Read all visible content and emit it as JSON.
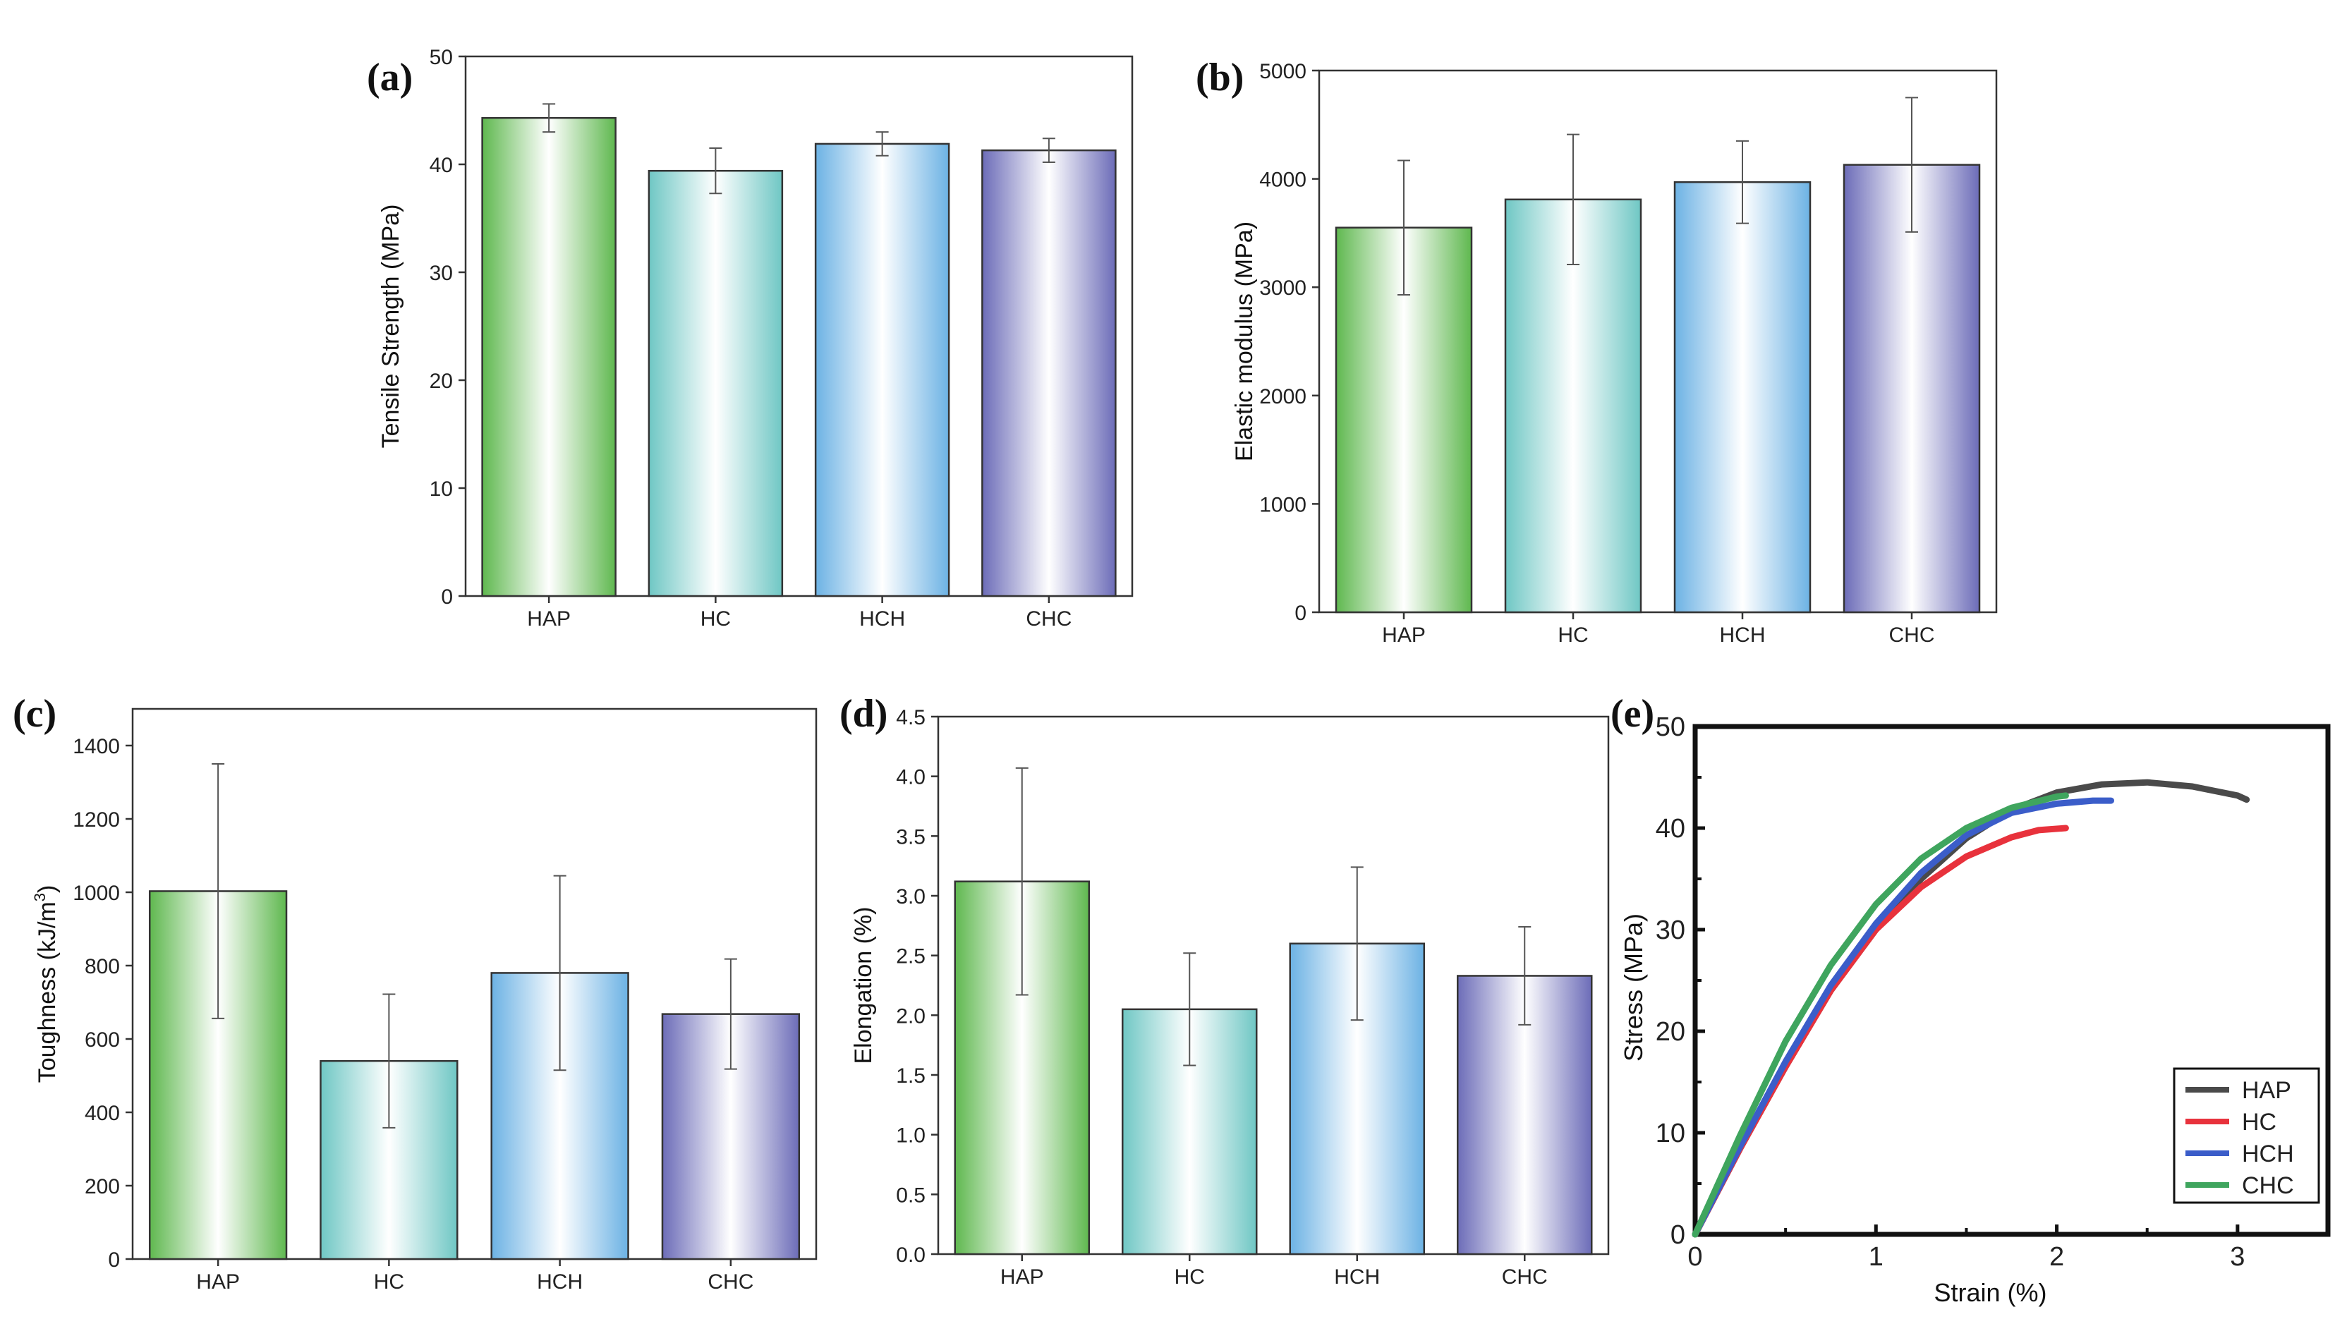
{
  "chart_data": [
    {
      "id": "a",
      "panel_label": "(a)",
      "type": "bar",
      "categories": [
        "HAP",
        "HC",
        "HCH",
        "CHC"
      ],
      "values": [
        44.3,
        39.4,
        41.9,
        41.3
      ],
      "errors": [
        1.3,
        2.1,
        1.1,
        1.1
      ],
      "ylabel": "Tensile Strength (MPa)",
      "xlabel": "",
      "ylim": [
        0,
        50
      ],
      "yticks": [
        0,
        10,
        20,
        30,
        40,
        50
      ],
      "ytick_labels": [
        "0",
        "10",
        "20",
        "30",
        "40",
        "50"
      ],
      "bar_colors": [
        "#5fb84f",
        "#6fc7c4",
        "#6cb2e4",
        "#6c6cb8"
      ]
    },
    {
      "id": "b",
      "panel_label": "(b)",
      "type": "bar",
      "categories": [
        "HAP",
        "HC",
        "HCH",
        "CHC"
      ],
      "values": [
        3550,
        3810,
        3970,
        4130
      ],
      "errors": [
        620,
        600,
        380,
        620
      ],
      "ylabel": "Elastic modulus (MPa)",
      "xlabel": "",
      "ylim": [
        0,
        5000
      ],
      "yticks": [
        0,
        1000,
        2000,
        3000,
        4000,
        5000
      ],
      "ytick_labels": [
        "0",
        "1000",
        "2000",
        "3000",
        "4000",
        "5000"
      ],
      "bar_colors": [
        "#5fb84f",
        "#6fc7c4",
        "#6cb2e4",
        "#6c6cb8"
      ]
    },
    {
      "id": "c",
      "panel_label": "(c)",
      "type": "bar",
      "categories": [
        "HAP",
        "HC",
        "HCH",
        "CHC"
      ],
      "values": [
        1003,
        540,
        780,
        668
      ],
      "errors": [
        347,
        182,
        265,
        150
      ],
      "ylabel": "Toughness (kJ/m",
      "ylabel_sup": "3",
      "ylabel_end": ")",
      "xlabel": "",
      "ylim": [
        0,
        1500
      ],
      "yticks": [
        0,
        200,
        400,
        600,
        800,
        1000,
        1200,
        1400
      ],
      "ytick_labels": [
        "0",
        "200",
        "400",
        "600",
        "800",
        "1000",
        "1200",
        "1400"
      ],
      "bar_colors": [
        "#5fb84f",
        "#6fc7c4",
        "#6cb2e4",
        "#6c6cb8"
      ]
    },
    {
      "id": "d",
      "panel_label": "(d)",
      "type": "bar",
      "categories": [
        "HAP",
        "HC",
        "HCH",
        "CHC"
      ],
      "values": [
        3.12,
        2.05,
        2.6,
        2.33
      ],
      "errors": [
        0.95,
        0.47,
        0.64,
        0.41
      ],
      "ylabel": "Elongation (%)",
      "xlabel": "",
      "ylim": [
        0,
        4.5
      ],
      "yticks": [
        0,
        0.5,
        1,
        1.5,
        2,
        2.5,
        3,
        3.5,
        4,
        4.5
      ],
      "ytick_labels": [
        "0.0",
        "0.5",
        "1.0",
        "1.5",
        "2.0",
        "2.5",
        "3.0",
        "3.5",
        "4.0",
        "4.5"
      ],
      "bar_colors": [
        "#5fb84f",
        "#6fc7c4",
        "#6cb2e4",
        "#6c6cb8"
      ]
    },
    {
      "id": "e",
      "panel_label": "(e)",
      "type": "line",
      "xlabel": "Strain (%)",
      "ylabel": "Stress (MPa)",
      "xlim": [
        0,
        3.5
      ],
      "ylim": [
        0,
        50
      ],
      "xticks": [
        0,
        1,
        2,
        3
      ],
      "xtick_labels": [
        "0",
        "1",
        "2",
        "3"
      ],
      "yticks": [
        0,
        10,
        20,
        30,
        40,
        50
      ],
      "ytick_labels": [
        "0",
        "10",
        "20",
        "30",
        "40",
        "50"
      ],
      "legend_position": "bottom-right",
      "series": [
        {
          "name": "HAP",
          "color": "#4a4a4a",
          "x": [
            0,
            0.25,
            0.5,
            0.75,
            1.0,
            1.25,
            1.5,
            1.75,
            2.0,
            2.25,
            2.5,
            2.75,
            3.0,
            3.05
          ],
          "y": [
            0,
            8.5,
            16.5,
            24.0,
            30.0,
            35.0,
            39.0,
            41.8,
            43.5,
            44.3,
            44.5,
            44.1,
            43.2,
            42.8
          ]
        },
        {
          "name": "HC",
          "color": "#e8323c",
          "x": [
            0,
            0.25,
            0.5,
            0.75,
            1.0,
            1.25,
            1.5,
            1.75,
            1.9,
            2.05
          ],
          "y": [
            0,
            8.5,
            16.5,
            24.0,
            30.0,
            34.2,
            37.2,
            39.1,
            39.8,
            40.0
          ]
        },
        {
          "name": "HCH",
          "color": "#3b5dc9",
          "x": [
            0,
            0.25,
            0.5,
            0.75,
            1.0,
            1.25,
            1.5,
            1.75,
            2.0,
            2.2,
            2.3
          ],
          "y": [
            0,
            8.7,
            17.0,
            24.5,
            30.6,
            35.6,
            39.3,
            41.5,
            42.4,
            42.7,
            42.7
          ]
        },
        {
          "name": "CHC",
          "color": "#3fa55e",
          "x": [
            0,
            0.25,
            0.5,
            0.75,
            1.0,
            1.25,
            1.5,
            1.75,
            2.0,
            2.05
          ],
          "y": [
            0,
            9.8,
            19.0,
            26.5,
            32.5,
            37.0,
            40.0,
            42.0,
            43.1,
            43.2
          ]
        }
      ]
    }
  ]
}
